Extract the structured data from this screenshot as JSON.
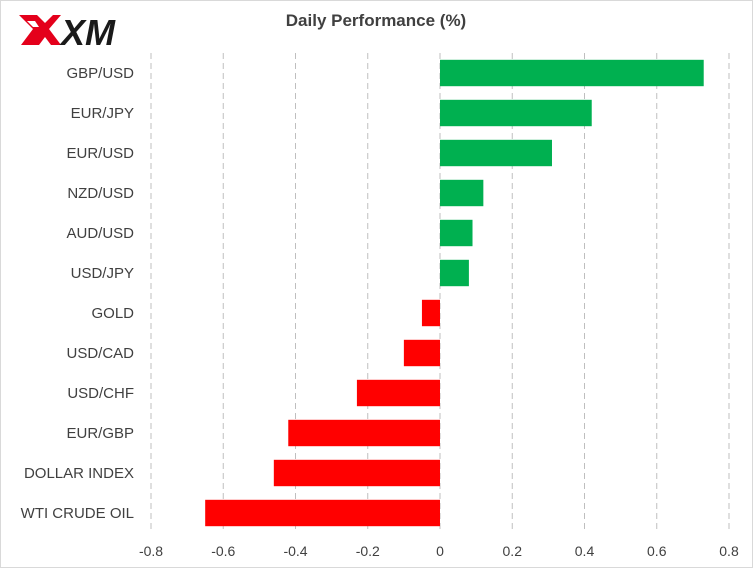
{
  "brand": {
    "logo_text": "XM",
    "logo_color": "#e4001b"
  },
  "chart_data": {
    "type": "bar",
    "orientation": "horizontal",
    "title": "Daily Performance  (%)",
    "xlabel": "",
    "ylabel": "",
    "categories": [
      "GBP/USD",
      "EUR/JPY",
      "EUR/USD",
      "NZD/USD",
      "AUD/USD",
      "USD/JPY",
      "GOLD",
      "USD/CAD",
      "USD/CHF",
      "EUR/GBP",
      "DOLLAR INDEX",
      "WTI CRUDE OIL"
    ],
    "values": [
      0.73,
      0.42,
      0.31,
      0.12,
      0.09,
      0.08,
      -0.05,
      -0.1,
      -0.23,
      -0.42,
      -0.46,
      -0.65
    ],
    "xlim": [
      -0.8,
      0.8
    ],
    "xticks": [
      "-0.8",
      "-0.6",
      "-0.4",
      "-0.2",
      "0",
      "0.2",
      "0.4",
      "0.6",
      "0.8"
    ],
    "xtick_values": [
      -0.8,
      -0.6,
      -0.4,
      -0.2,
      0,
      0.2,
      0.4,
      0.6,
      0.8
    ],
    "grid": "vertical-dashed",
    "legend": "none",
    "colors": {
      "positive": "#00b050",
      "negative": "#ff0000",
      "grid": "#bfbfbf",
      "text": "#404040"
    }
  }
}
